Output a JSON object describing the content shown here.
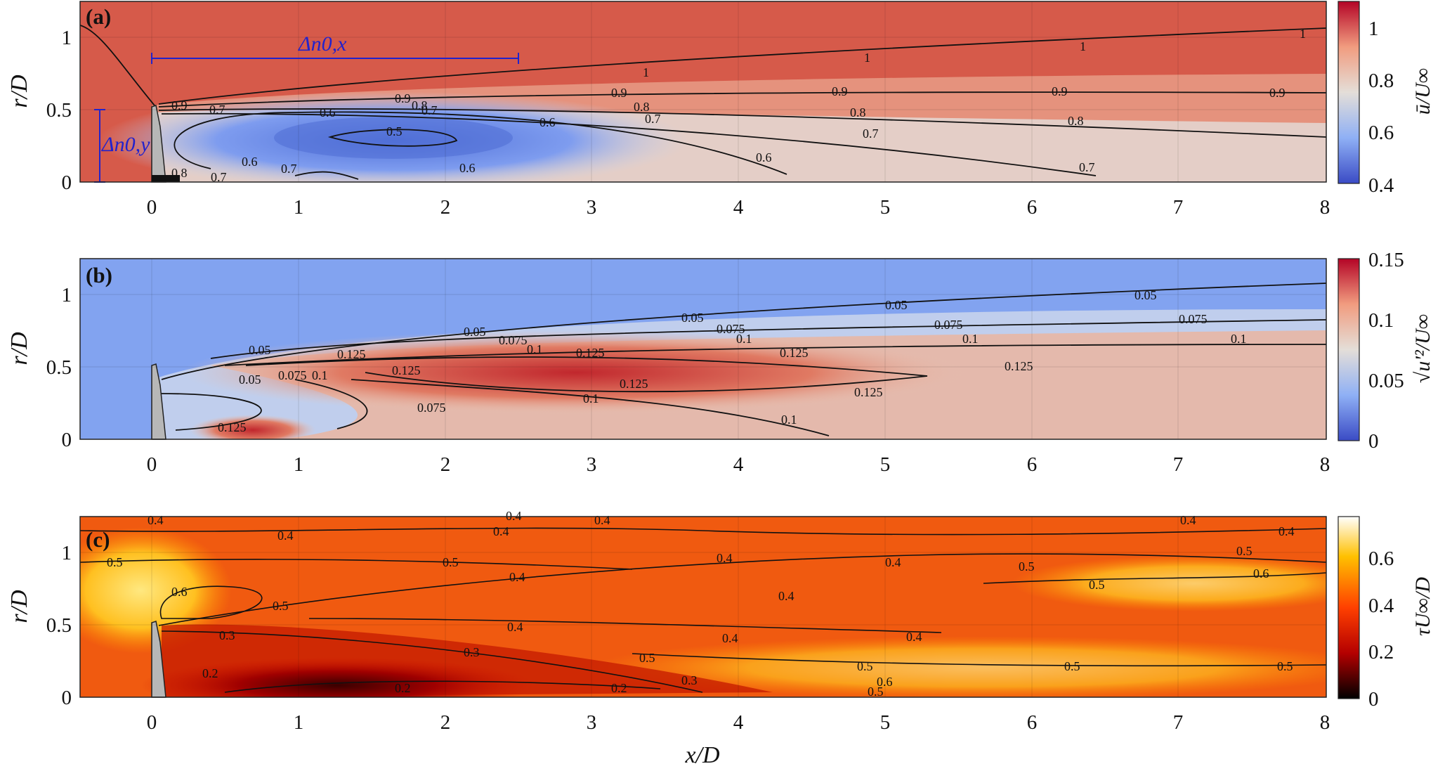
{
  "figure": {
    "panels": [
      {
        "label": "(a)",
        "ylabel": "r/D",
        "colorbar_label": "ū/U∞",
        "colorbar_ticks": [
          "0.4",
          "0.6",
          "0.8",
          "1"
        ],
        "colormap": [
          "#3a4bc5",
          "#8fb0f5",
          "#e4ded8",
          "#f19c7f",
          "#b40426"
        ],
        "contour_labels": [
          "1",
          "1",
          "1",
          "1",
          "0.9",
          "0.9",
          "0.9",
          "0.9",
          "0.9",
          "0.8",
          "0.8",
          "0.8",
          "0.8",
          "0.7",
          "0.7",
          "0.7",
          "0.7",
          "0.7",
          "0.7",
          "0.6",
          "0.6",
          "0.6",
          "0.6",
          "0.6",
          "0.5",
          "0.9",
          "0.8",
          "0.7"
        ],
        "annotations": {
          "dx": "Δn0,x",
          "dy": "Δn0,y"
        }
      },
      {
        "label": "(b)",
        "ylabel": "r/D",
        "colorbar_label": "√u'²/U∞",
        "colorbar_ticks": [
          "0",
          "0.05",
          "0.1",
          "0.15"
        ],
        "colormap": [
          "#3a4bc5",
          "#8fb0f5",
          "#e4ded8",
          "#f19c7f",
          "#b40426"
        ],
        "contour_labels": [
          "0.05",
          "0.05",
          "0.05",
          "0.05",
          "0.05",
          "0.05",
          "0.075",
          "0.075",
          "0.075",
          "0.075",
          "0.075",
          "0.075",
          "0.1",
          "0.1",
          "0.1",
          "0.1",
          "0.1",
          "0.1",
          "0.1",
          "0.125",
          "0.125",
          "0.125",
          "0.125",
          "0.125",
          "0.125",
          "0.125",
          "0.125"
        ]
      },
      {
        "label": "(c)",
        "ylabel": "r/D",
        "colorbar_label": "τU∞/D",
        "colorbar_ticks": [
          "0",
          "0.2",
          "0.4",
          "0.6"
        ],
        "colormap": [
          "#000000",
          "#b40000",
          "#ff4000",
          "#ffc000",
          "#ffffff"
        ],
        "contour_labels": [
          "0.4",
          "0.4",
          "0.4",
          "0.4",
          "0.4",
          "0.4",
          "0.4",
          "0.4",
          "0.4",
          "0.4",
          "0.4",
          "0.4",
          "0.4",
          "0.4",
          "0.5",
          "0.5",
          "0.5",
          "0.5",
          "0.5",
          "0.5",
          "0.5",
          "0.5",
          "0.5",
          "0.5",
          "0.5",
          "0.6",
          "0.6",
          "0.6",
          "0.3",
          "0.3",
          "0.3",
          "0.2",
          "0.2",
          "0.2"
        ]
      }
    ],
    "xlabel": "x/D",
    "xticks": [
      "0",
      "1",
      "2",
      "3",
      "4",
      "5",
      "6",
      "7",
      "8"
    ],
    "yticks": [
      "0",
      "0.5",
      "1"
    ]
  },
  "chart_data": [
    {
      "type": "heatmap",
      "title": "(a)",
      "xlabel": "x/D",
      "ylabel": "r/D",
      "xlim": [
        -0.5,
        8
      ],
      "ylim": [
        0,
        1.25
      ],
      "colorbar": {
        "label": "ū/U∞",
        "range": [
          0.4,
          1.1
        ],
        "ticks": [
          0.4,
          0.6,
          0.8,
          1
        ]
      },
      "contour_levels": [
        0.5,
        0.6,
        0.7,
        0.8,
        0.9,
        1
      ],
      "grid": true
    },
    {
      "type": "heatmap",
      "title": "(b)",
      "xlabel": "x/D",
      "ylabel": "r/D",
      "xlim": [
        -0.5,
        8
      ],
      "ylim": [
        0,
        1.25
      ],
      "colorbar": {
        "label": "√u'²/U∞",
        "range": [
          0,
          0.15
        ],
        "ticks": [
          0,
          0.05,
          0.1,
          0.15
        ]
      },
      "contour_levels": [
        0.05,
        0.075,
        0.1,
        0.125
      ],
      "grid": true
    },
    {
      "type": "heatmap",
      "title": "(c)",
      "xlabel": "x/D",
      "ylabel": "r/D",
      "xlim": [
        -0.5,
        8
      ],
      "ylim": [
        0,
        1.25
      ],
      "colorbar": {
        "label": "τU∞/D",
        "range": [
          0,
          0.78
        ],
        "ticks": [
          0,
          0.2,
          0.4,
          0.6
        ]
      },
      "contour_levels": [
        0.2,
        0.3,
        0.4,
        0.5,
        0.6
      ],
      "grid": true
    }
  ]
}
